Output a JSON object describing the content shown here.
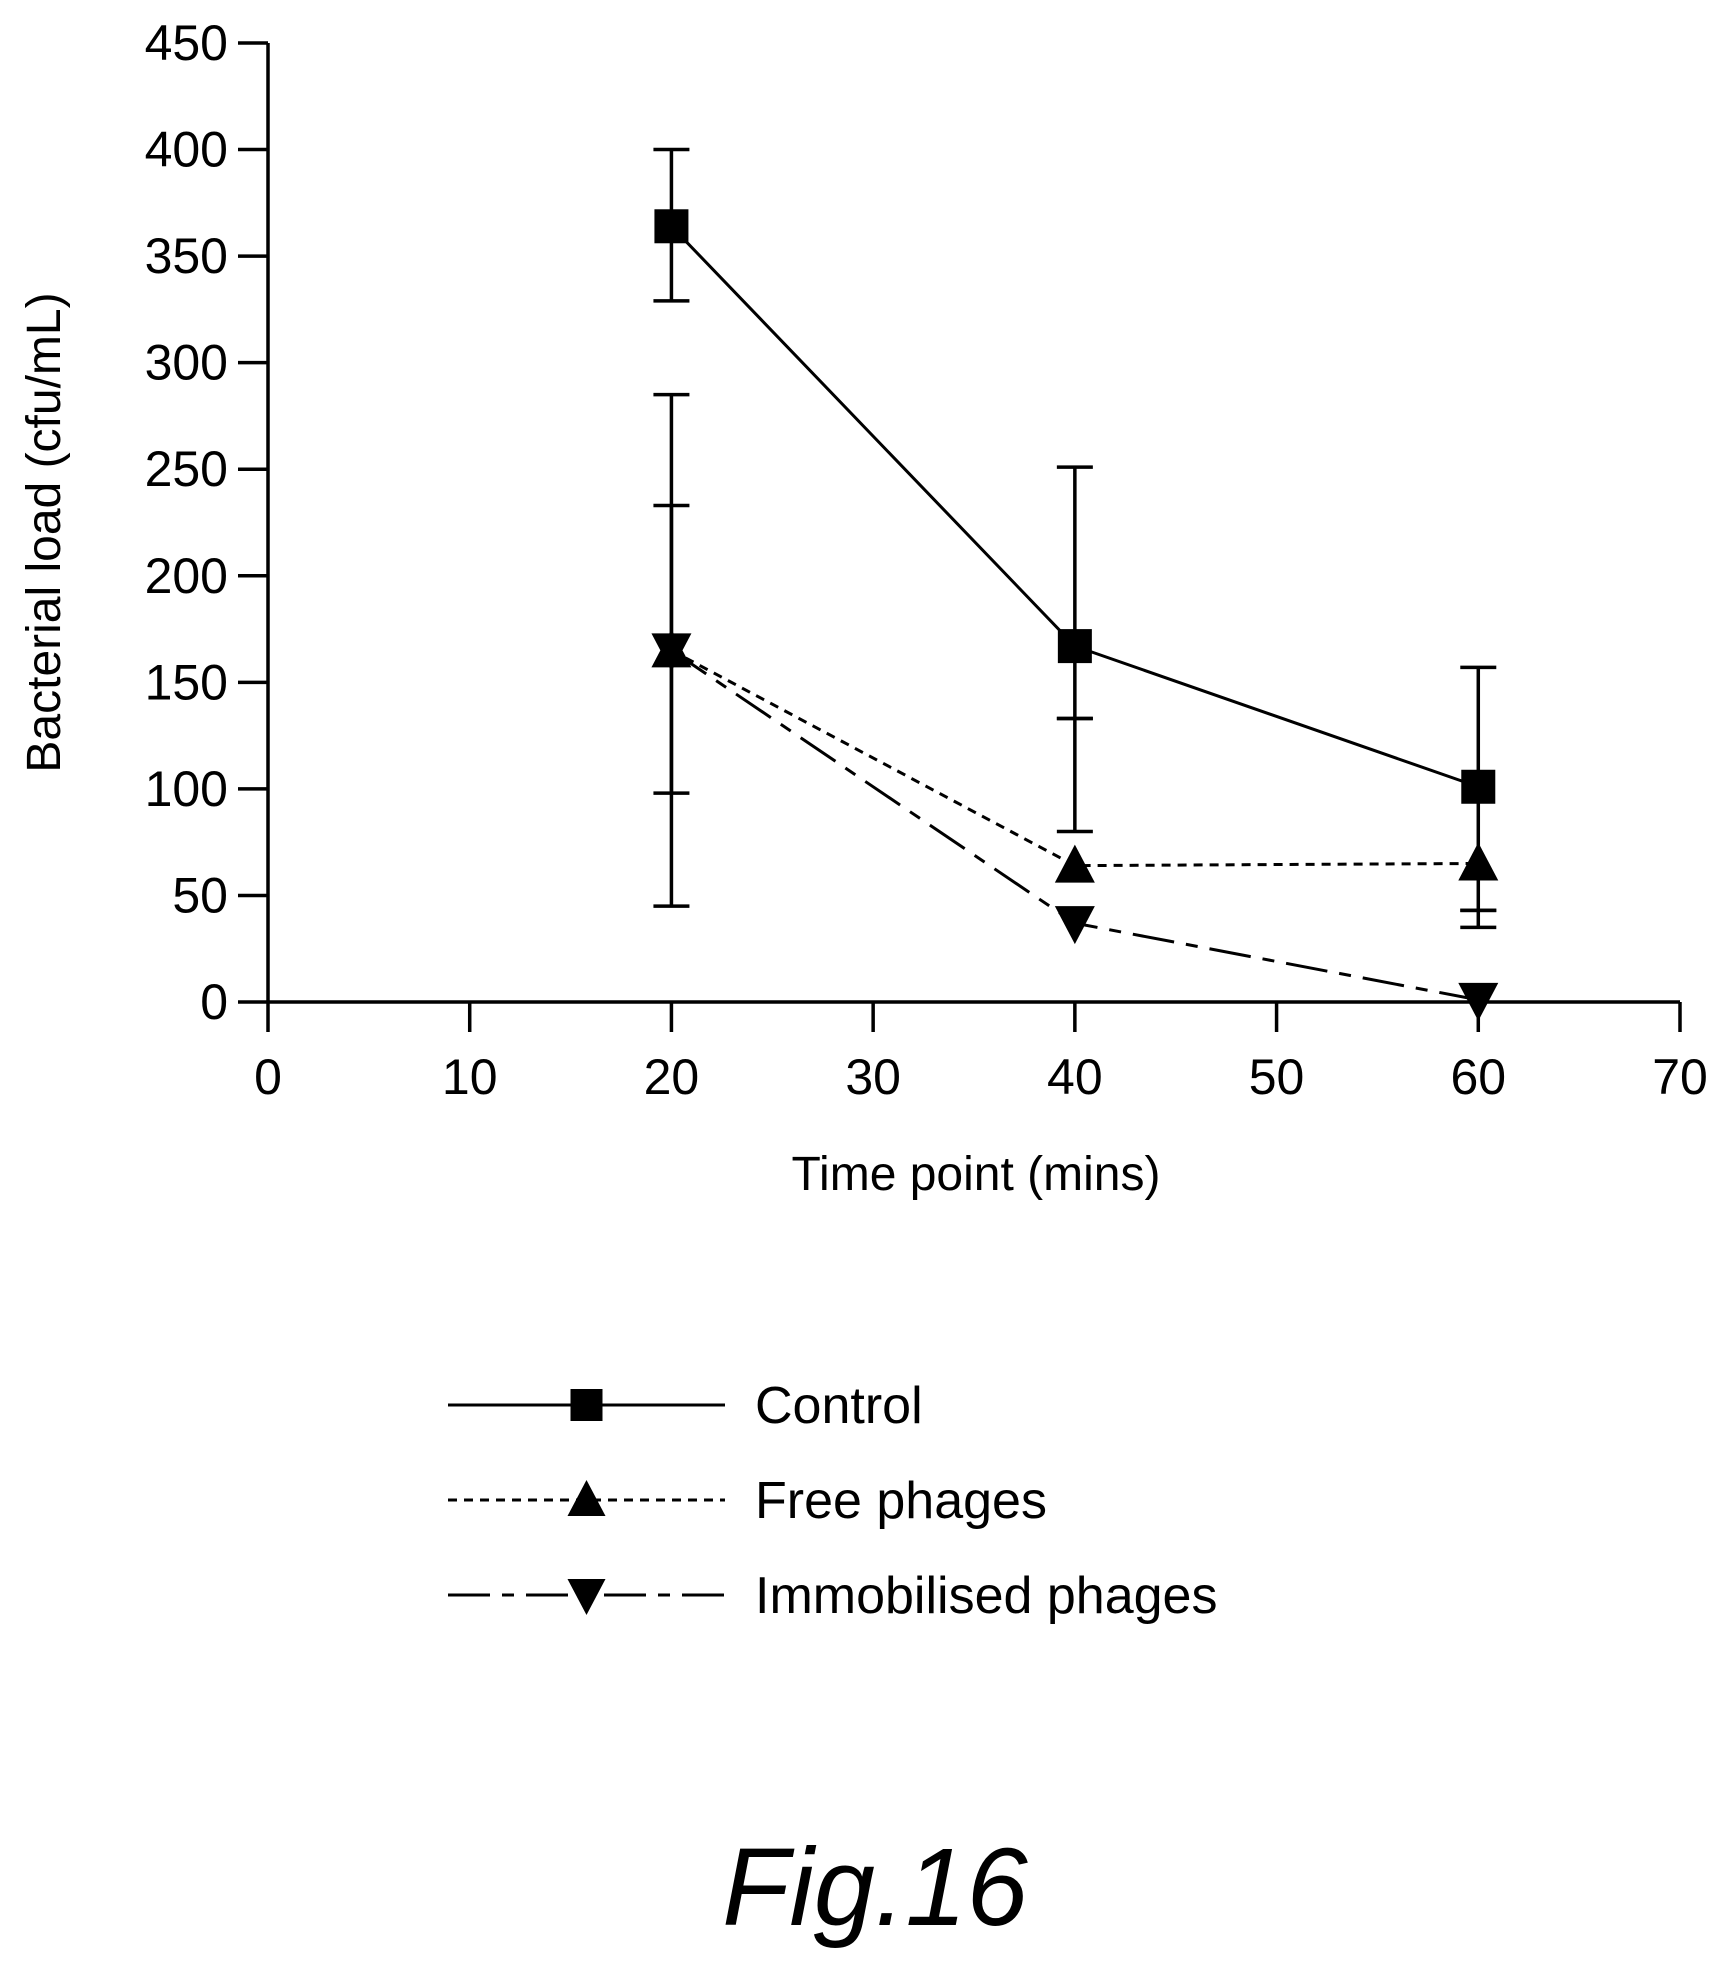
{
  "chart_data": {
    "type": "line",
    "xlabel": "Time point (mins)",
    "ylabel": "Bacterial load (cfu/mL)",
    "xlim": [
      0,
      70
    ],
    "ylim": [
      0,
      450
    ],
    "x_ticks": [
      "0",
      "10",
      "20",
      "30",
      "40",
      "50",
      "60",
      "70"
    ],
    "y_ticks": [
      "0",
      "50",
      "100",
      "150",
      "200",
      "250",
      "300",
      "350",
      "400",
      "450"
    ],
    "grid": false,
    "legend_position": "bottom",
    "series": [
      {
        "name": "Control",
        "marker": "square",
        "line_style": "solid",
        "x": [
          20,
          40,
          60
        ],
        "y": [
          364,
          167,
          101
        ],
        "error_low": [
          329,
          80,
          35
        ],
        "error_high": [
          400,
          251,
          157
        ]
      },
      {
        "name": "Free phages",
        "marker": "triangle-up",
        "line_style": "dotted",
        "x": [
          20,
          40,
          60
        ],
        "y": [
          165,
          64,
          65
        ],
        "error_low": [
          98,
          133,
          43
        ],
        "error_high": [
          233,
          133,
          43
        ]
      },
      {
        "name": "Immobilised phages",
        "marker": "triangle-down",
        "line_style": "dash-dot",
        "x": [
          20,
          40,
          60
        ],
        "y": [
          165,
          37,
          1
        ],
        "error_low": [
          45,
          37,
          1
        ],
        "error_high": [
          285,
          37,
          1
        ]
      }
    ]
  },
  "caption": "Fig.16"
}
